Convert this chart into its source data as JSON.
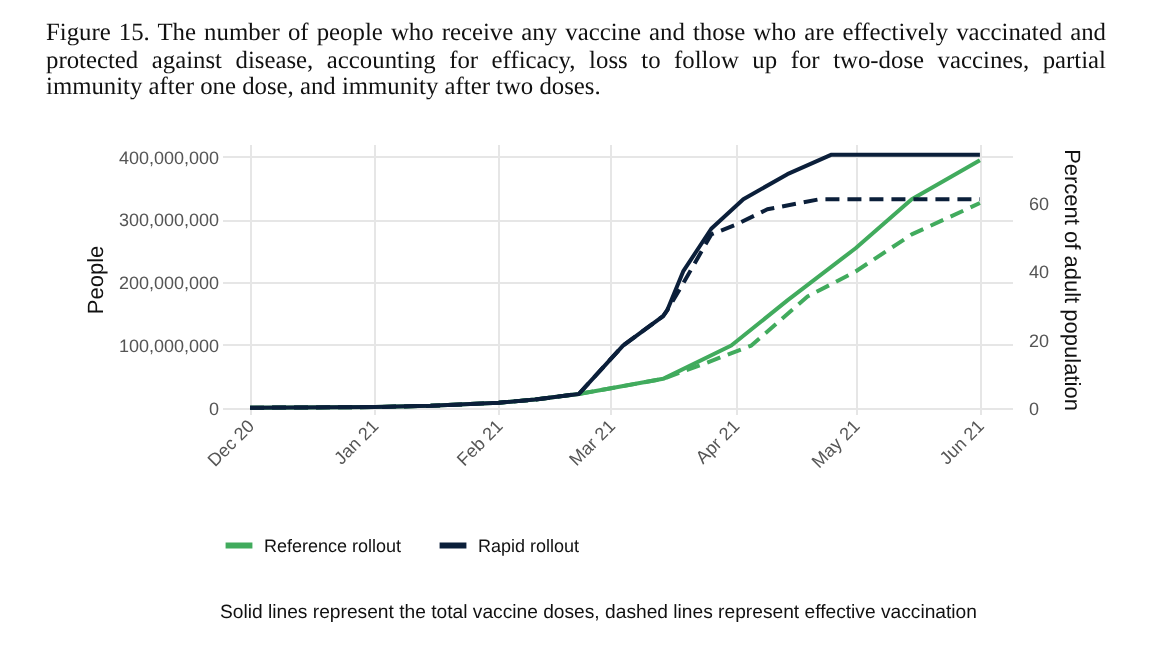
{
  "chart_data": {
    "type": "line",
    "title": "Figure 15. The number of people who receive any vaccine and those who are effectively vaccinated and protected against disease, accounting for efficacy, loss to follow up for two-dose vaccines, partial immunity after one dose, and immunity after two doses.",
    "ylabel": "People",
    "y2label": "Percent of adult population",
    "annotations": [
      "Solid lines represent the total vaccine doses, dashed lines represent effective vaccination"
    ],
    "xlim": [
      "2020-11-24",
      "2021-06-09"
    ],
    "xticks": [
      {
        "value": "2020-12-01",
        "label": "Dec 20"
      },
      {
        "value": "2021-01-01",
        "label": "Jan 21"
      },
      {
        "value": "2021-02-01",
        "label": "Feb 21"
      },
      {
        "value": "2021-03-01",
        "label": "Mar 21"
      },
      {
        "value": "2021-04-01",
        "label": "Apr 21"
      },
      {
        "value": "2021-05-01",
        "label": "May 21"
      },
      {
        "value": "2021-06-01",
        "label": "Jun 21"
      }
    ],
    "ylim": [
      -10000000,
      420000000
    ],
    "yticks": [
      {
        "value": 0,
        "label": "0"
      },
      {
        "value": 100000000,
        "label": "100,000,000"
      },
      {
        "value": 200000000,
        "label": "200,000,000"
      },
      {
        "value": 300000000,
        "label": "300,000,000"
      },
      {
        "value": 400000000,
        "label": "400,000,000"
      }
    ],
    "y2lim": [
      -1.84,
      77.4
    ],
    "y2ticks": [
      0,
      20,
      40,
      60
    ],
    "grid": true,
    "legend": "bottom",
    "series": [
      {
        "name": "Reference rollout",
        "color": "#41ab5d",
        "line_style": "solid",
        "x": [
          "2020-12-01",
          "2021-01-01",
          "2021-01-15",
          "2021-02-01",
          "2021-02-10",
          "2021-02-21",
          "2021-03-01",
          "2021-03-14",
          "2021-03-31",
          "2021-04-14",
          "2021-05-01",
          "2021-05-15",
          "2021-06-01"
        ],
        "values": [
          0,
          1000000,
          3000000,
          8000000,
          13000000,
          22000000,
          31000000,
          46000000,
          99000000,
          171000000,
          254000000,
          332000000,
          394000000
        ]
      },
      {
        "color": "#41ab5d",
        "line_style": "dashed",
        "x": [
          "2020-12-01",
          "2021-01-01",
          "2021-01-15",
          "2021-02-01",
          "2021-02-10",
          "2021-02-21",
          "2021-03-01",
          "2021-03-14",
          "2021-03-25",
          "2021-04-05",
          "2021-04-19",
          "2021-05-01",
          "2021-05-15",
          "2021-06-01"
        ],
        "values": [
          0,
          1000000,
          3000000,
          8000000,
          13000000,
          22000000,
          31000000,
          46000000,
          72000000,
          99000000,
          177000000,
          217000000,
          276000000,
          326000000
        ]
      },
      {
        "name": "Rapid rollout",
        "color": "#0b1f3a",
        "line_style": "solid",
        "x": [
          "2020-12-01",
          "2021-01-01",
          "2021-01-15",
          "2021-02-01",
          "2021-02-10",
          "2021-02-21",
          "2021-03-04",
          "2021-03-14",
          "2021-03-15",
          "2021-03-19",
          "2021-03-26",
          "2021-04-03",
          "2021-04-14",
          "2021-04-25",
          "2021-06-01"
        ],
        "values": [
          0,
          1000000,
          3000000,
          8000000,
          13000000,
          22000000,
          99000000,
          146000000,
          155000000,
          217000000,
          285000000,
          332000000,
          372000000,
          403000000,
          403000000
        ]
      },
      {
        "color": "#0b1f3a",
        "line_style": "dashed",
        "x": [
          "2020-12-01",
          "2021-01-01",
          "2021-01-15",
          "2021-02-01",
          "2021-02-10",
          "2021-02-21",
          "2021-03-04",
          "2021-03-14",
          "2021-03-15",
          "2021-03-19",
          "2021-03-26",
          "2021-04-01",
          "2021-04-09",
          "2021-04-22",
          "2021-06-01"
        ],
        "values": [
          0,
          1000000,
          3000000,
          8000000,
          13000000,
          22000000,
          99000000,
          146000000,
          155000000,
          198000000,
          276000000,
          291000000,
          316000000,
          332000000,
          332000000
        ]
      }
    ]
  }
}
